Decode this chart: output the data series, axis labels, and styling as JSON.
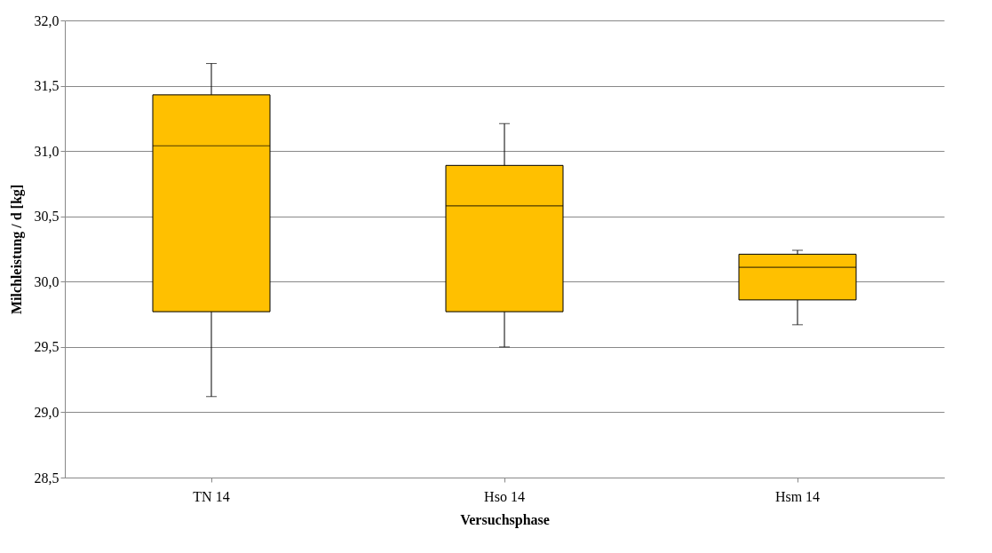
{
  "chart_data": {
    "type": "box",
    "xlabel": "Versuchsphase",
    "ylabel": "Milchleistung / d [kg]",
    "categories": [
      "TN 14",
      "Hso 14",
      "Hsm 14"
    ],
    "series": [
      {
        "color": "#ffc000",
        "boxes": [
          {
            "low": 29.12,
            "q1": 29.77,
            "median": 31.04,
            "q3": 31.43,
            "high": 31.67
          },
          {
            "low": 29.5,
            "q1": 29.77,
            "median": 30.58,
            "q3": 30.89,
            "high": 31.21
          },
          {
            "low": 29.67,
            "q1": 29.86,
            "median": 30.11,
            "q3": 30.21,
            "high": 30.24
          }
        ]
      }
    ],
    "ylim": [
      28.5,
      32.0
    ],
    "yticks": [
      {
        "value": 28.5,
        "label": "28,5"
      },
      {
        "value": 29.0,
        "label": "29,0"
      },
      {
        "value": 29.5,
        "label": "29,5"
      },
      {
        "value": 30.0,
        "label": "30,0"
      },
      {
        "value": 30.5,
        "label": "30,5"
      },
      {
        "value": 31.0,
        "label": "31,0"
      },
      {
        "value": 31.5,
        "label": "31,5"
      },
      {
        "value": 32.0,
        "label": "32,0"
      }
    ],
    "grid": "y"
  }
}
